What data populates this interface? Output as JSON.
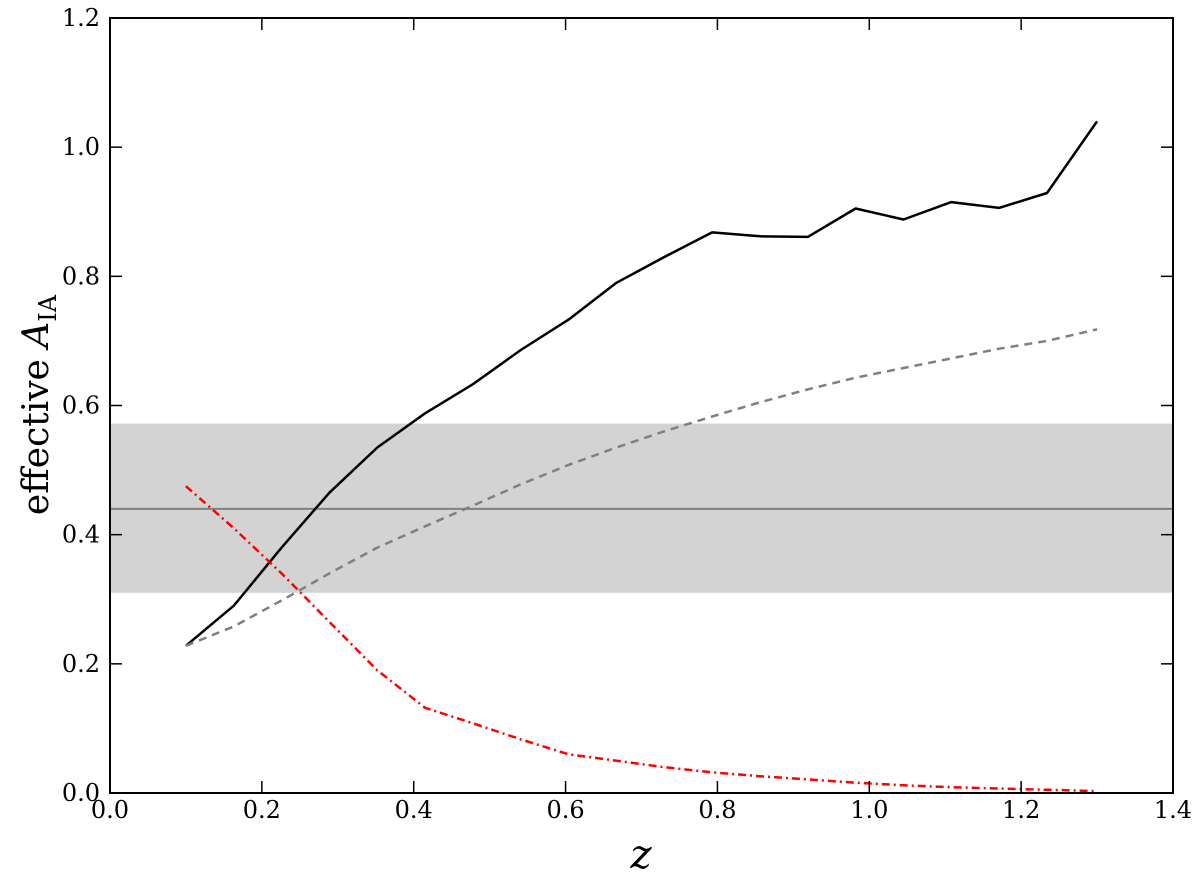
{
  "chart_data": {
    "type": "line",
    "title": "",
    "xlabel": "z",
    "ylabel": {
      "prefix": "effective ",
      "symbol": "A",
      "subscript": "IA"
    },
    "xlim": [
      0.0,
      1.4
    ],
    "ylim": [
      0.0,
      1.2
    ],
    "xticks": [
      "0.0",
      "0.2",
      "0.4",
      "0.6",
      "0.8",
      "1.0",
      "1.2",
      "1.4"
    ],
    "yticks": [
      "0.0",
      "0.2",
      "0.4",
      "0.6",
      "0.8",
      "1.0",
      "1.2"
    ],
    "grid": false,
    "legend": "none",
    "band": {
      "y_low": 0.31,
      "y_high": 0.572,
      "y_center": 0.44,
      "fill_color": "#d3d3d3",
      "line_color": "#808080"
    },
    "series": [
      {
        "style": "solid",
        "color": "#000000",
        "x": [
          0.1,
          0.163,
          0.226,
          0.289,
          0.352,
          0.415,
          0.478,
          0.541,
          0.604,
          0.667,
          0.73,
          0.793,
          0.856,
          0.919,
          0.982,
          1.045,
          1.108,
          1.171,
          1.234,
          1.3
        ],
        "y": [
          0.228,
          0.29,
          0.38,
          0.465,
          0.535,
          0.588,
          0.633,
          0.686,
          0.733,
          0.79,
          0.83,
          0.868,
          0.862,
          0.861,
          0.905,
          0.888,
          0.915,
          0.906,
          0.929,
          1.04
        ]
      },
      {
        "style": "dashed",
        "color": "#808080",
        "x": [
          0.1,
          0.163,
          0.226,
          0.289,
          0.352,
          0.415,
          0.478,
          0.541,
          0.604,
          0.667,
          0.73,
          0.793,
          0.856,
          0.919,
          0.982,
          1.045,
          1.108,
          1.171,
          1.234,
          1.3
        ],
        "y": [
          0.228,
          0.258,
          0.298,
          0.34,
          0.38,
          0.413,
          0.445,
          0.478,
          0.508,
          0.535,
          0.56,
          0.583,
          0.605,
          0.625,
          0.643,
          0.658,
          0.673,
          0.688,
          0.7,
          0.718
        ]
      },
      {
        "style": "dashdot",
        "color": "#ff0000",
        "x": [
          0.1,
          0.163,
          0.226,
          0.289,
          0.352,
          0.415,
          0.478,
          0.541,
          0.604,
          0.667,
          0.73,
          0.793,
          0.856,
          0.919,
          0.982,
          1.045,
          1.108,
          1.171,
          1.234,
          1.3
        ],
        "y": [
          0.475,
          0.41,
          0.34,
          0.265,
          0.19,
          0.132,
          0.108,
          0.083,
          0.06,
          0.05,
          0.04,
          0.032,
          0.026,
          0.021,
          0.016,
          0.012,
          0.009,
          0.007,
          0.005,
          0.003
        ]
      }
    ]
  }
}
